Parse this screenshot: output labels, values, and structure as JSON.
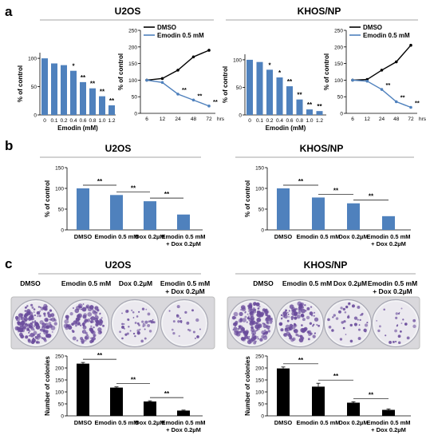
{
  "panels": {
    "a": "a",
    "b": "b",
    "c": "c"
  },
  "colors": {
    "bar_blue": "#4F81BD",
    "bar_black": "#000000",
    "line_dmso": "#000000",
    "line_emodin": "#4F81BD",
    "plate_stain": "#6a4c9c"
  },
  "headers": {
    "a_left": "U2OS",
    "a_right": "KHOS/NP",
    "b_left": "U2OS",
    "b_right": "KHOS/NP",
    "c_left": "U2OS",
    "c_right": "KHOS/NP"
  },
  "significance": {
    "star1": "*",
    "star2": "**"
  },
  "treatments": {
    "dmso": "DMSO",
    "emodin": "Emodin 0.5 mM",
    "dox": "Dox 0.2µM",
    "combo_line1": "Emodin 0.5 mM",
    "combo_line2": "+ Dox 0.2µM"
  },
  "chart_data": [
    {
      "id": "a_u2os_dose",
      "type": "bar",
      "categories": [
        "0",
        "0.1",
        "0.2",
        "0.4",
        "0.6",
        "0.8",
        "1.0",
        "1.2"
      ],
      "values": [
        100,
        91,
        88,
        78,
        58,
        47,
        33,
        17
      ],
      "significance": [
        "",
        "",
        "",
        "*",
        "**",
        "**",
        "**",
        "**"
      ],
      "xlabel": "Emodin (mM)",
      "ylabel": "% of control",
      "yticks": [
        0,
        50,
        100
      ],
      "ylim": [
        0,
        110
      ]
    },
    {
      "id": "a_u2os_time",
      "type": "line",
      "x": [
        6,
        12,
        24,
        48,
        72
      ],
      "xunit": "hrs",
      "series": [
        {
          "name": "DMSO",
          "values": [
            100,
            105,
            130,
            170,
            190
          ]
        },
        {
          "name": "Emodin 0.5 mM",
          "values": [
            100,
            93,
            58,
            40,
            22
          ]
        }
      ],
      "significance": [
        "",
        "",
        "**",
        "**",
        "**"
      ],
      "ylabel": "% of control",
      "yticks": [
        0,
        50,
        100,
        150,
        200,
        250
      ],
      "ylim": [
        0,
        250
      ],
      "legend": "top-left"
    },
    {
      "id": "a_khos_dose",
      "type": "bar",
      "categories": [
        "0",
        "0.1",
        "0.2",
        "0.4",
        "0.6",
        "0.8",
        "1.0",
        "1.2"
      ],
      "values": [
        100,
        96,
        82,
        68,
        52,
        28,
        10,
        7
      ],
      "significance": [
        "",
        "",
        "*",
        "*",
        "**",
        "**",
        "**",
        "**"
      ],
      "xlabel": "Emodin (mM)",
      "ylabel": "% of control",
      "yticks": [
        0,
        50,
        100
      ],
      "ylim": [
        0,
        110
      ]
    },
    {
      "id": "a_khos_time",
      "type": "line",
      "x": [
        6,
        12,
        24,
        48,
        72
      ],
      "xunit": "hrs",
      "series": [
        {
          "name": "DMSO",
          "values": [
            100,
            102,
            130,
            155,
            205
          ]
        },
        {
          "name": "Emodin 0.5 mM",
          "values": [
            100,
            97,
            72,
            35,
            18
          ]
        }
      ],
      "significance": [
        "",
        "",
        "**",
        "**",
        "**"
      ],
      "ylabel": "% of control",
      "yticks": [
        0,
        50,
        100,
        150,
        200,
        250
      ],
      "ylim": [
        0,
        250
      ],
      "legend": "top-left"
    },
    {
      "id": "b_u2os",
      "type": "bar",
      "categories": [
        "DMSO",
        "Emodin 0.5 mM",
        "Dox 0.2µM",
        "Emodin 0.5 mM + Dox 0.2µM"
      ],
      "values": [
        100,
        84,
        69,
        37
      ],
      "comparisons": [
        "**",
        "**",
        "**"
      ],
      "ylabel": "% of control",
      "yticks": [
        0,
        50,
        100,
        150
      ],
      "ylim": [
        0,
        150
      ]
    },
    {
      "id": "b_khos",
      "type": "bar",
      "categories": [
        "DMSO",
        "Emodin 0.5 mM",
        "Dox 0.2µM",
        "Emodin 0.5 mM + Dox 0.2µM"
      ],
      "values": [
        100,
        78,
        64,
        33
      ],
      "comparisons": [
        "**",
        "**",
        "**"
      ],
      "ylabel": "% of control",
      "yticks": [
        0,
        50,
        100,
        150
      ],
      "ylim": [
        0,
        150
      ]
    },
    {
      "id": "c_u2os",
      "type": "bar",
      "categories": [
        "DMSO",
        "Emodin 0.5 mM",
        "Dox 0.2µM",
        "Emodin 0.5 mM + Dox 0.2µM"
      ],
      "values": [
        218,
        118,
        60,
        22
      ],
      "errors": [
        5,
        3,
        3,
        2
      ],
      "comparisons": [
        "**",
        "**",
        "**"
      ],
      "ylabel": "Number of colonies",
      "yticks": [
        0,
        50,
        100,
        150,
        200,
        250
      ],
      "ylim": [
        0,
        250
      ]
    },
    {
      "id": "c_khos",
      "type": "bar",
      "categories": [
        "DMSO",
        "Emodin 0.5 mM",
        "Dox 0.2µM",
        "Emodin 0.5 mM + Dox 0.2µM"
      ],
      "values": [
        198,
        122,
        55,
        25
      ],
      "errors": [
        6,
        14,
        4,
        4
      ],
      "comparisons": [
        "**",
        "**",
        "**"
      ],
      "ylabel": "Number of colonies",
      "yticks": [
        0,
        50,
        100,
        150,
        200,
        250
      ],
      "ylim": [
        0,
        250
      ]
    }
  ],
  "plates": {
    "u2os_density": [
      1.0,
      0.65,
      0.25,
      0.1
    ],
    "khos_density": [
      0.95,
      0.6,
      0.2,
      0.12
    ]
  }
}
